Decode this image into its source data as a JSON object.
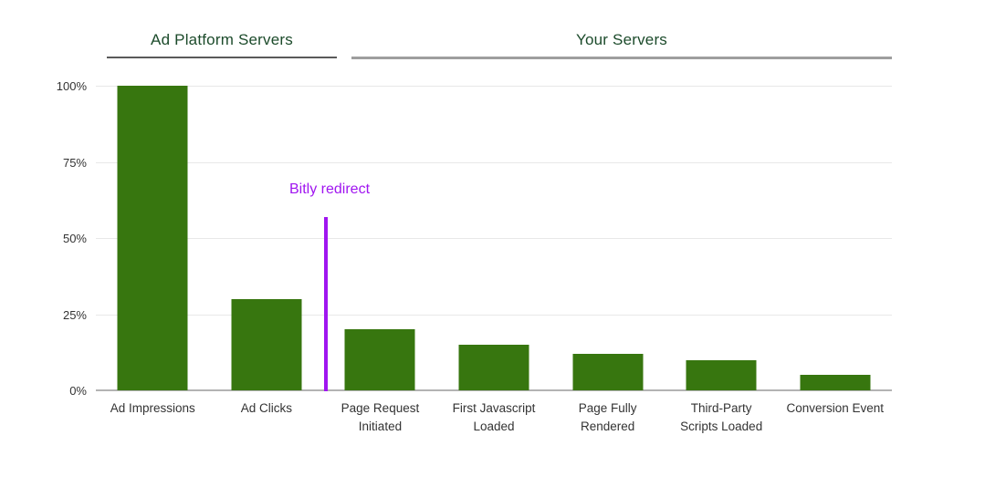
{
  "chart_data": {
    "type": "bar",
    "title": "",
    "xlabel": "",
    "ylabel": "",
    "categories": [
      "Ad Impressions",
      "Ad Clicks",
      "Page Request Initiated",
      "First Javascript Loaded",
      "Page Fully Rendered",
      "Third-Party Scripts Loaded",
      "Conversion Event"
    ],
    "categories_display": [
      [
        "Ad Impressions"
      ],
      [
        "Ad Clicks"
      ],
      [
        "Page Request",
        "Initiated"
      ],
      [
        "First Javascript",
        "Loaded"
      ],
      [
        "Page Fully",
        "Rendered"
      ],
      [
        "Third-Party",
        "Scripts Loaded"
      ],
      [
        "Conversion Event"
      ]
    ],
    "values": [
      100,
      30,
      20,
      15,
      12,
      10,
      5
    ],
    "unit": "%",
    "ylim": [
      0,
      100
    ],
    "y_ticks": [
      0,
      25,
      50,
      75,
      100
    ],
    "y_tick_labels": [
      "0%",
      "25%",
      "50%",
      "75%",
      "100%"
    ],
    "grid": true,
    "legend": "none",
    "bar_color": "#37760F",
    "sections": [
      {
        "label": "Ad Platform Servers",
        "covers_categories": [
          "Ad Impressions",
          "Ad Clicks"
        ]
      },
      {
        "label": "Your Servers",
        "covers_categories": [
          "Page Request Initiated",
          "First Javascript Loaded",
          "Page Fully Rendered",
          "Third-Party Scripts Loaded",
          "Conversion Event"
        ]
      }
    ],
    "annotation": {
      "label": "Bitly redirect",
      "color": "#A015F0",
      "position": "vertical line between Ad Clicks and Page Request Initiated",
      "line_top_value_pct": 57,
      "line_bottom_value_pct": 0
    },
    "colors": {
      "section_header_text": "#1C4B2B",
      "gridline": "#e8e8e8",
      "axis_line": "#b3b3b3",
      "tick_label_text": "#333333"
    }
  }
}
